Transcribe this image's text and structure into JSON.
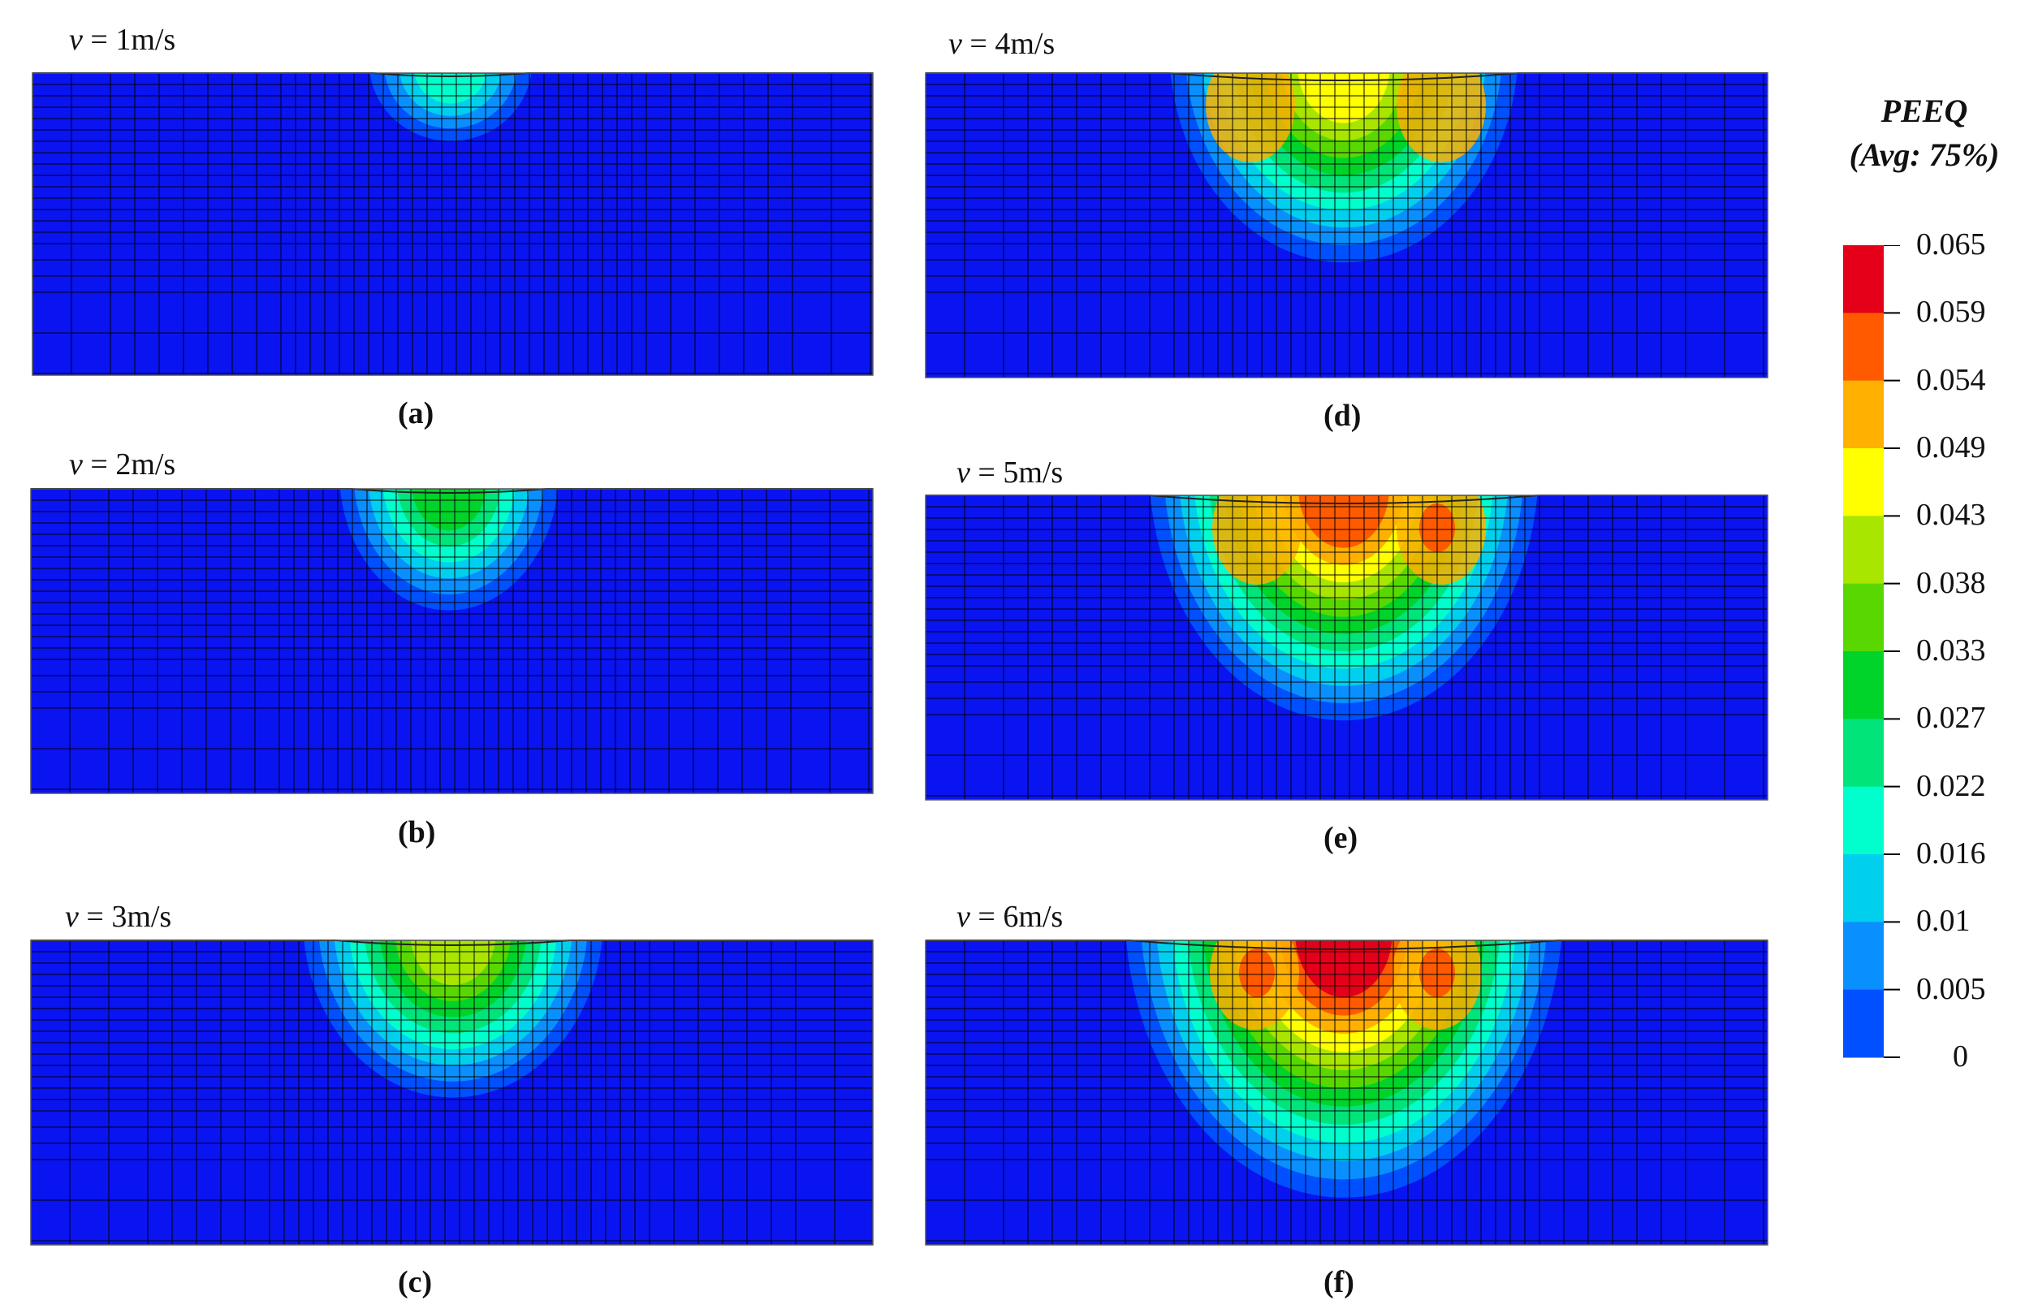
{
  "panels": [
    {
      "id": "a",
      "velocity_label": "1m/s",
      "caption": "(a)"
    },
    {
      "id": "b",
      "velocity_label": "2m/s",
      "caption": "(b)"
    },
    {
      "id": "c",
      "velocity_label": "3m/s",
      "caption": "(c)"
    },
    {
      "id": "d",
      "velocity_label": "4m/s",
      "caption": "(d)"
    },
    {
      "id": "e",
      "velocity_label": "5m/s",
      "caption": "(e)"
    },
    {
      "id": "f",
      "velocity_label": "6m/s",
      "caption": "(f)"
    }
  ],
  "velocity_symbol": "v",
  "legend": {
    "title_line1": "PEEQ",
    "title_line2": "(Avg: 75%)",
    "ticks": [
      "0.065",
      "0.059",
      "0.054",
      "0.049",
      "0.043",
      "0.038",
      "0.033",
      "0.027",
      "0.022",
      "0.016",
      "0.01",
      "0.005",
      "0"
    ],
    "colors": [
      "#e5001a",
      "#ff5a00",
      "#ffb000",
      "#ffff00",
      "#a8e600",
      "#58d800",
      "#00d42a",
      "#00e47a",
      "#00ffcc",
      "#00cfee",
      "#0a8fff",
      "#0050ff",
      "#0a14f0"
    ]
  },
  "colors": {
    "background_field": "#0a14f0"
  }
}
